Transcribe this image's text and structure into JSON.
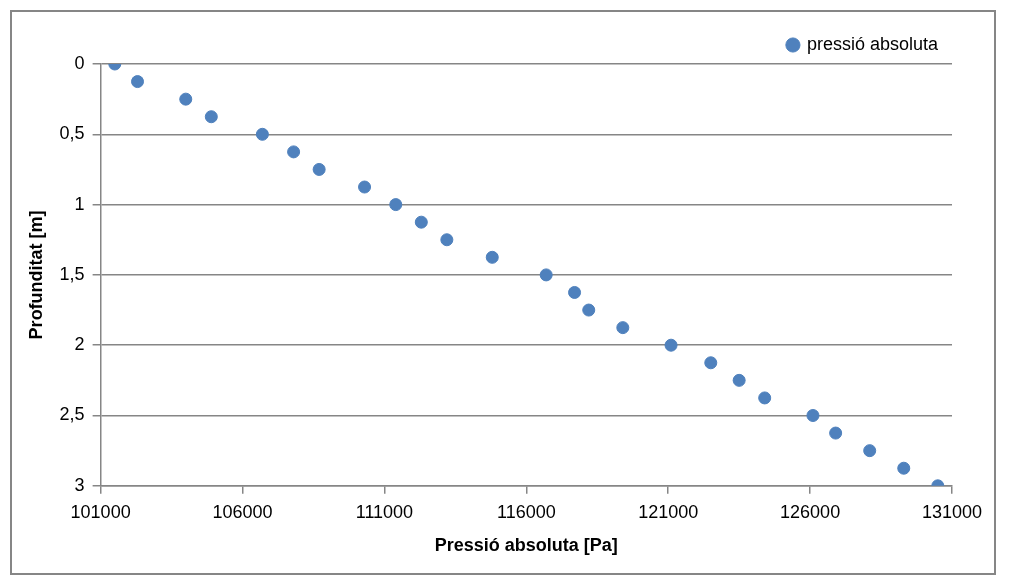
{
  "chart_data": {
    "type": "scatter",
    "xlabel": "Pressió absoluta [Pa]",
    "ylabel": "Profunditat [m]",
    "x": [
      101500,
      102300,
      104000,
      104900,
      106700,
      107800,
      108700,
      110300,
      111400,
      112300,
      113200,
      114800,
      116700,
      117700,
      118200,
      119400,
      121100,
      122500,
      123500,
      124400,
      126100,
      126900,
      128100,
      129300,
      130500
    ],
    "series": [
      {
        "name": "pressió absoluta",
        "color": "#4f81bd",
        "values": [
          0,
          0.125,
          0.25,
          0.375,
          0.5,
          0.625,
          0.75,
          0.875,
          1,
          1.125,
          1.25,
          1.375,
          1.5,
          1.625,
          1.75,
          1.875,
          2,
          2.125,
          2.25,
          2.375,
          2.5,
          2.625,
          2.75,
          2.875,
          3
        ]
      }
    ],
    "xlim": [
      101000,
      131000
    ],
    "xticks": [
      101000,
      106000,
      111000,
      116000,
      121000,
      126000,
      131000
    ],
    "ylim": [
      3,
      0
    ],
    "yticks": [
      0,
      {
        "value": 0.5,
        "label": "0,5"
      },
      1,
      {
        "value": 1.5,
        "label": "1,5"
      },
      2,
      {
        "value": 2.5,
        "label": "2,5"
      },
      3
    ],
    "grid": "y",
    "legend": "top right",
    "marker": "circle"
  }
}
